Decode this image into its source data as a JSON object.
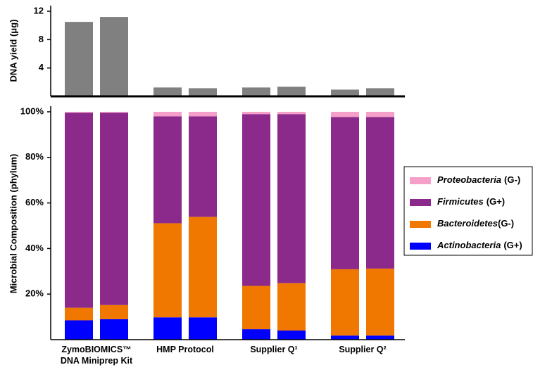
{
  "chart_data": [
    {
      "type": "bar",
      "y_label": "DNA yield (μg)",
      "color": "#808080",
      "values": [
        10.5,
        11.2,
        1.25,
        1.15,
        1.25,
        1.35,
        0.95,
        1.15
      ],
      "ylim": [
        0,
        12
      ],
      "yticks": [
        4,
        8,
        12
      ]
    },
    {
      "type": "stacked_bar",
      "y_label": "Microbial Composition (phylum)",
      "groups": [
        "ZymoBIOMICS™ DNA Miniprep Kit",
        "HMP Protocol",
        "Supplier Q¹",
        "Supplier Q²"
      ],
      "ylim": [
        0,
        100
      ],
      "yticks": [
        {
          "value": 20,
          "label": "20%"
        },
        {
          "value": 40,
          "label": "40%"
        },
        {
          "value": 60,
          "label": "60%"
        },
        {
          "value": 80,
          "label": "80%"
        },
        {
          "value": 100,
          "label": "100%"
        }
      ],
      "series": [
        {
          "name": "Actinobacteria",
          "gram": "(G+)",
          "color": "#0000ff",
          "values": [
            8.5,
            9.0,
            9.8,
            9.8,
            4.6,
            4.0,
            1.8,
            1.8
          ]
        },
        {
          "name": "Bacteroidetes",
          "gram": "(G-)",
          "color": "#f07800",
          "values": [
            5.5,
            6.2,
            41.3,
            44.1,
            19.0,
            20.8,
            29.1,
            29.4
          ]
        },
        {
          "name": "Firmicutes",
          "gram": "(G+)",
          "color": "#8b2a8b",
          "values": [
            85.6,
            84.4,
            46.9,
            44.1,
            75.4,
            74.2,
            66.8,
            66.5
          ]
        },
        {
          "name": "Proteobacteria",
          "gram": "(G-)",
          "color": "#f4a0c8",
          "values": [
            0.4,
            0.4,
            2.0,
            2.0,
            1.0,
            1.0,
            2.3,
            2.3
          ]
        }
      ],
      "legend": "right"
    }
  ]
}
